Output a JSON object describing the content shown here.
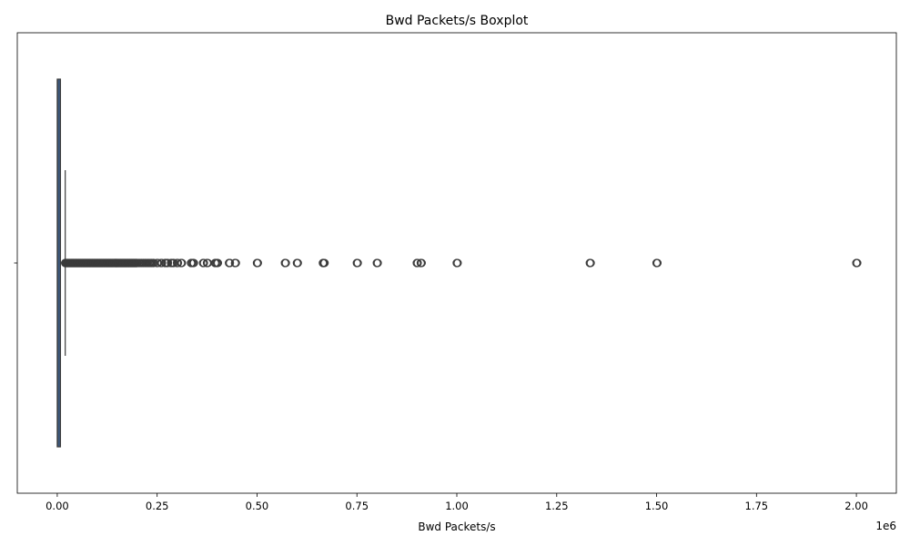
{
  "chart_data": {
    "type": "boxplot",
    "orientation": "horizontal",
    "title": "Bwd Packets/s Boxplot",
    "xlabel": "Bwd Packets/s",
    "ylabel": "",
    "x_offset_text": "1e6",
    "xlim": [
      -100000,
      2100000
    ],
    "xticks": [
      0,
      250000,
      500000,
      750000,
      1000000,
      1250000,
      1500000,
      1750000,
      2000000
    ],
    "xtick_labels": [
      "0.00",
      "0.25",
      "0.50",
      "0.75",
      "1.00",
      "1.25",
      "1.50",
      "1.75",
      "2.00"
    ],
    "grid": false,
    "legend": "none",
    "box": {
      "q1": 0,
      "median": 500,
      "q3": 8000,
      "whisker_low": 0,
      "whisker_high": 20000,
      "color": "#3d5a80",
      "edge_color": "#3a3a3a"
    },
    "outliers_dense_range": [
      20000,
      200000
    ],
    "outliers": [
      205000,
      210000,
      215000,
      220000,
      225000,
      230000,
      235000,
      240000,
      250000,
      260000,
      270000,
      275000,
      285000,
      290000,
      300000,
      310000,
      335000,
      340000,
      365000,
      375000,
      395000,
      400000,
      430000,
      445000,
      500000,
      570000,
      600000,
      665000,
      667000,
      750000,
      800000,
      900000,
      910000,
      1000000,
      1333000,
      1500000,
      2000000
    ]
  }
}
